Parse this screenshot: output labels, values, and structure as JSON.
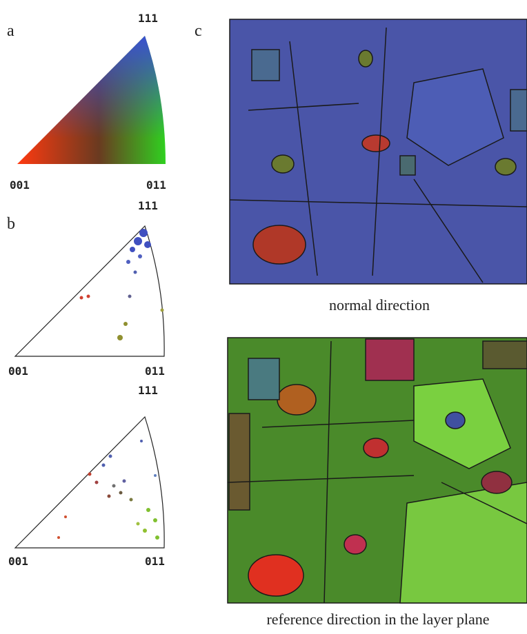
{
  "panels": {
    "a": {
      "label": "a",
      "triangle": {
        "top": "111",
        "left": "001",
        "right": "011"
      }
    },
    "b": {
      "label": "b",
      "triangles": [
        {
          "top": "111",
          "left": "001",
          "right": "011"
        },
        {
          "top": "111",
          "left": "001",
          "right": "011"
        }
      ]
    },
    "c": {
      "label": "c",
      "maps": [
        {
          "caption": "normal direction"
        },
        {
          "caption": "reference direction in the layer plane"
        }
      ]
    }
  }
}
